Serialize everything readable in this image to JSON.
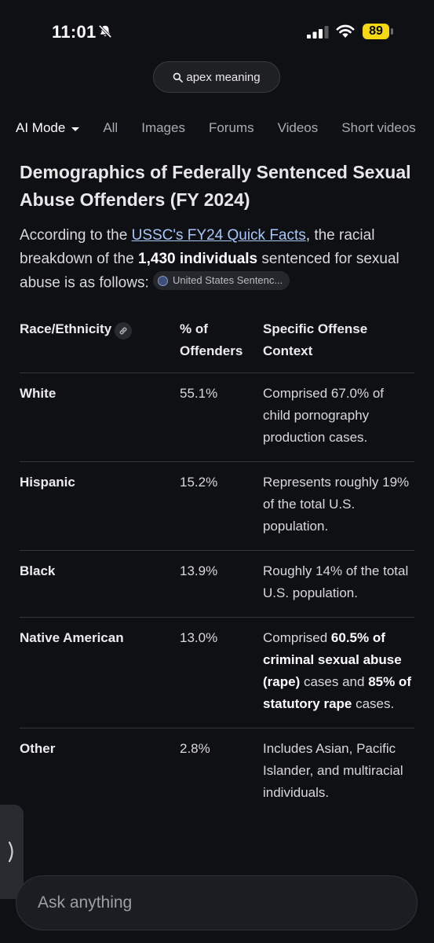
{
  "status_bar": {
    "time": "11:01",
    "battery": "89",
    "icons": [
      "bell-slash-icon",
      "signal-icon",
      "wifi-icon",
      "battery-icon"
    ]
  },
  "search": {
    "query": "apex meaning",
    "icon": "search-icon"
  },
  "tabs": [
    {
      "label": "AI Mode",
      "active": true
    },
    {
      "label": "All"
    },
    {
      "label": "Images"
    },
    {
      "label": "Forums"
    },
    {
      "label": "Videos"
    },
    {
      "label": "Short videos"
    }
  ],
  "content": {
    "heading": "Demographics of Federally Sentenced Sexual Abuse Offenders (FY 2024)",
    "intro": {
      "part1": "According to the ",
      "link": "USSC's FY24 Quick Facts",
      "part2": ", the racial breakdown of the ",
      "bold": "1,430 individuals",
      "part3": " sentenced for sexual abuse is as follows: ",
      "source_chip": "United States Sentenc..."
    }
  },
  "table": {
    "headers": {
      "race": "Race/Ethnicity",
      "percent": "% of Offenders",
      "context": "Specific Offense Context"
    },
    "rows": [
      {
        "race": "White",
        "percent": "55.1%",
        "context": "Comprised 67.0% of child pornography production cases."
      },
      {
        "race": "Hispanic",
        "percent": "15.2%",
        "context": "Represents roughly 19% of the total U.S. population."
      },
      {
        "race": "Black",
        "percent": "13.9%",
        "context": "Roughly 14% of the total U.S. population."
      },
      {
        "race": "Native American",
        "percent": "13.0%",
        "context_parts": {
          "p1": "Comprised ",
          "b1": "60.5% of criminal sexual abuse (rape)",
          "p2": " cases and ",
          "b2": "85% of statutory rape",
          "p3": " cases."
        }
      },
      {
        "race": "Other",
        "percent": "2.8%",
        "context": "Includes Asian, Pacific Islander, and multiracial individuals."
      }
    ]
  },
  "ask": {
    "placeholder": "Ask anything"
  },
  "colors": {
    "background": "#0f1014",
    "link": "#a8c7fa",
    "battery": "#f5d80f"
  }
}
